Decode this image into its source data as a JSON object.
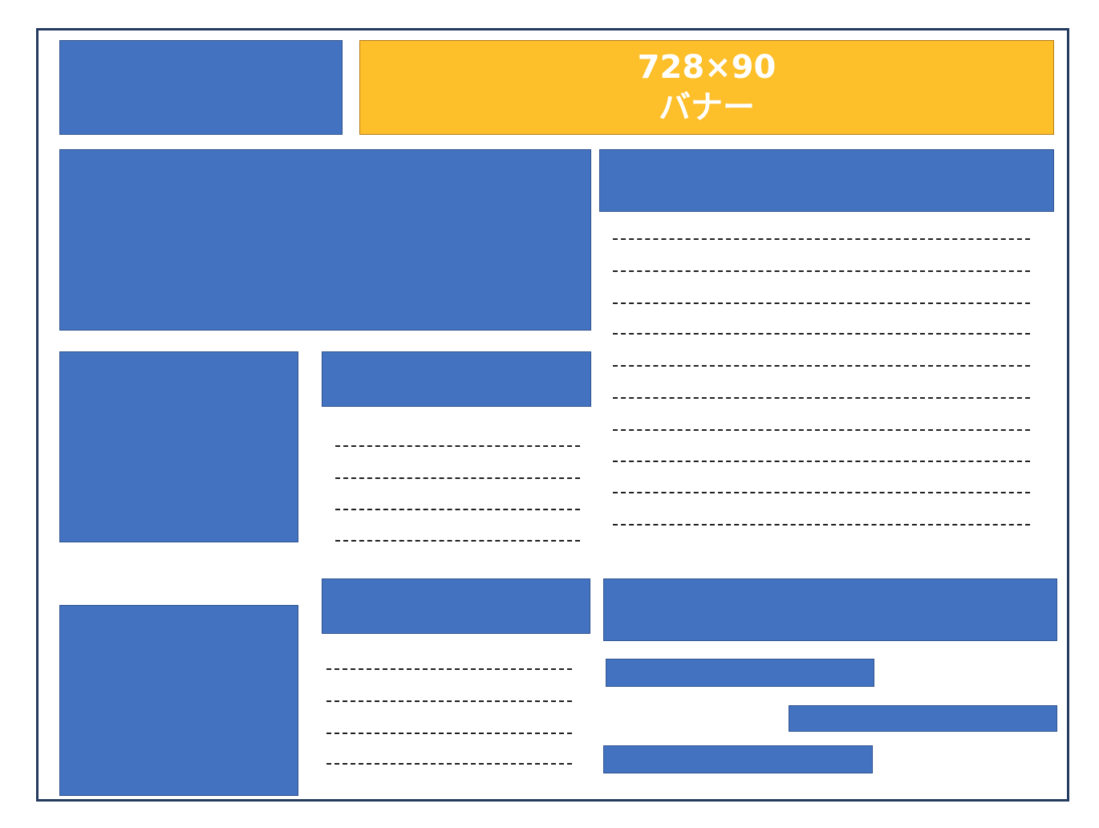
{
  "banner": {
    "size": "728×90",
    "label": "バナー",
    "color": "#fdbf2a"
  },
  "colors": {
    "block": "#4373c0",
    "frame": "#243a5e"
  },
  "lines": {
    "right_main": 10,
    "middle_upper": 4,
    "middle_lower": 4
  }
}
